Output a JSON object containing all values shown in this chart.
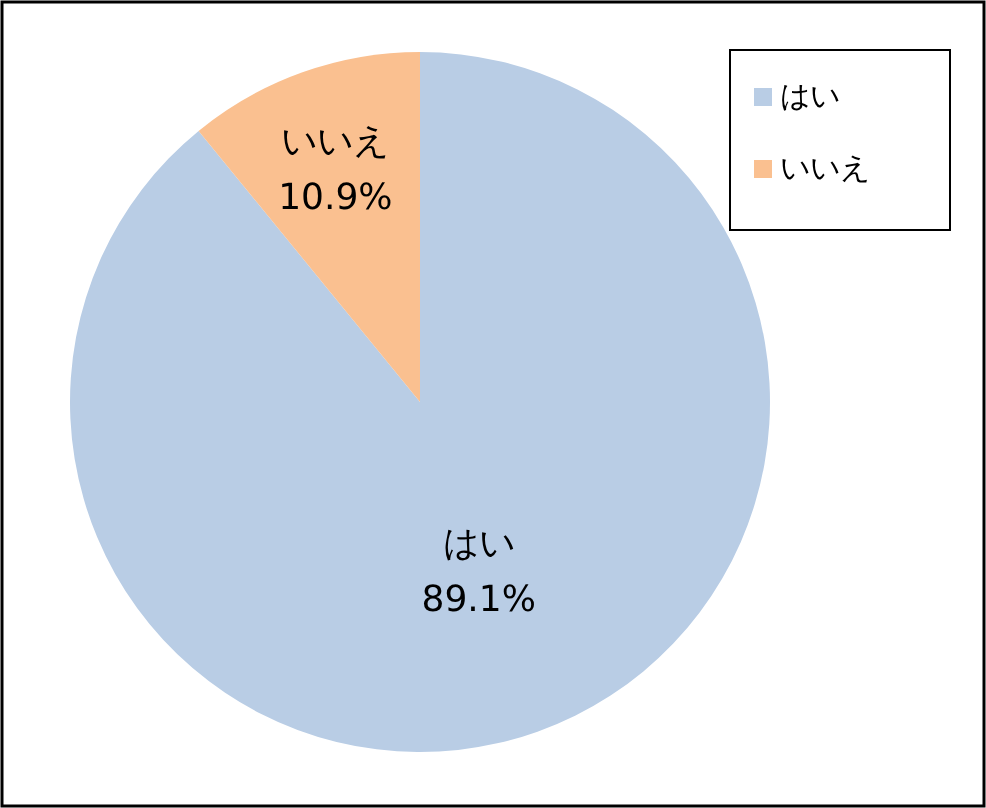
{
  "chart_data": {
    "type": "pie",
    "categories": [
      "はい",
      "いいえ"
    ],
    "values": [
      89.1,
      10.9
    ],
    "colors": [
      "#b9cde5",
      "#fac090"
    ],
    "value_labels": [
      "89.1%",
      "10.9%"
    ],
    "legend": "top right"
  }
}
